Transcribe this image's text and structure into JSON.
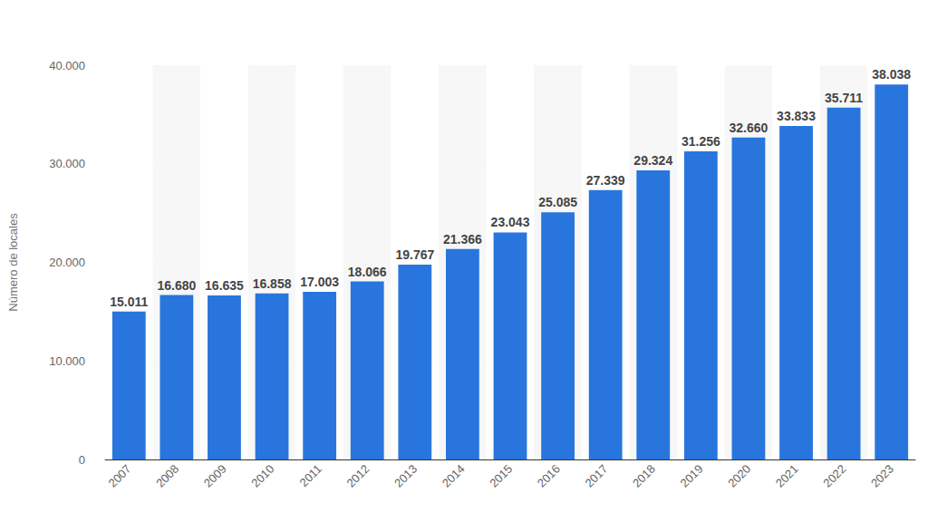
{
  "chart_data": {
    "type": "bar",
    "y_label": "Número de locales",
    "categories": [
      "2007",
      "2008",
      "2009",
      "2010",
      "2011",
      "2012",
      "2013",
      "2014",
      "2015",
      "2016",
      "2017",
      "2018",
      "2019",
      "2020",
      "2021",
      "2022",
      "2023"
    ],
    "values": [
      15011,
      16680,
      16635,
      16858,
      17003,
      18066,
      19767,
      21366,
      23043,
      25085,
      27339,
      29324,
      31256,
      32660,
      33833,
      35711,
      38038
    ],
    "value_labels": [
      "15.011",
      "16.680",
      "16.635",
      "16.858",
      "17.003",
      "18.066",
      "19.767",
      "21.366",
      "23.043",
      "25.085",
      "27.339",
      "29.324",
      "31.256",
      "32.660",
      "33.833",
      "35.711",
      "38.038"
    ],
    "color": "#2876dd",
    "ylim": [
      0,
      40000
    ],
    "yticks": [
      0,
      {
        "value": 10000,
        "label": "10.000"
      },
      {
        "value": 20000,
        "label": "20.000"
      },
      {
        "value": 30000,
        "label": "30.000"
      },
      {
        "value": 40000,
        "label": "40.000"
      }
    ],
    "grid": true,
    "data_labels": true
  }
}
